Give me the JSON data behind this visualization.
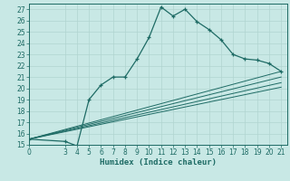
{
  "xlabel": "Humidex (Indice chaleur)",
  "bg_color": "#c8e8e5",
  "grid_color": "#b0d4d0",
  "line_color": "#1e6b65",
  "tick_color": "#1e6b65",
  "xlim": [
    0,
    21.5
  ],
  "ylim": [
    15,
    27.5
  ],
  "xticks": [
    0,
    3,
    4,
    5,
    6,
    7,
    8,
    9,
    10,
    11,
    12,
    13,
    14,
    15,
    16,
    17,
    18,
    19,
    20,
    21
  ],
  "yticks": [
    15,
    16,
    17,
    18,
    19,
    20,
    21,
    22,
    23,
    24,
    25,
    26,
    27
  ],
  "main_curve_x": [
    0,
    3,
    4,
    5,
    6,
    7,
    8,
    9,
    10,
    11,
    12,
    13,
    14,
    15,
    16,
    17,
    18,
    19,
    20,
    21
  ],
  "main_curve_y": [
    15.5,
    15.3,
    14.9,
    19.0,
    20.3,
    21.0,
    21.0,
    22.6,
    24.5,
    27.2,
    26.4,
    27.0,
    25.9,
    25.2,
    24.3,
    23.0,
    22.6,
    22.5,
    22.2,
    21.5
  ],
  "fan_lines": [
    {
      "x": [
        0,
        21
      ],
      "y": [
        15.5,
        21.5
      ]
    },
    {
      "x": [
        0,
        21
      ],
      "y": [
        15.5,
        21.0
      ]
    },
    {
      "x": [
        0,
        21
      ],
      "y": [
        15.5,
        20.5
      ]
    },
    {
      "x": [
        0,
        21
      ],
      "y": [
        15.5,
        20.1
      ]
    }
  ],
  "tick_fontsize": 5.5,
  "xlabel_fontsize": 6.5
}
